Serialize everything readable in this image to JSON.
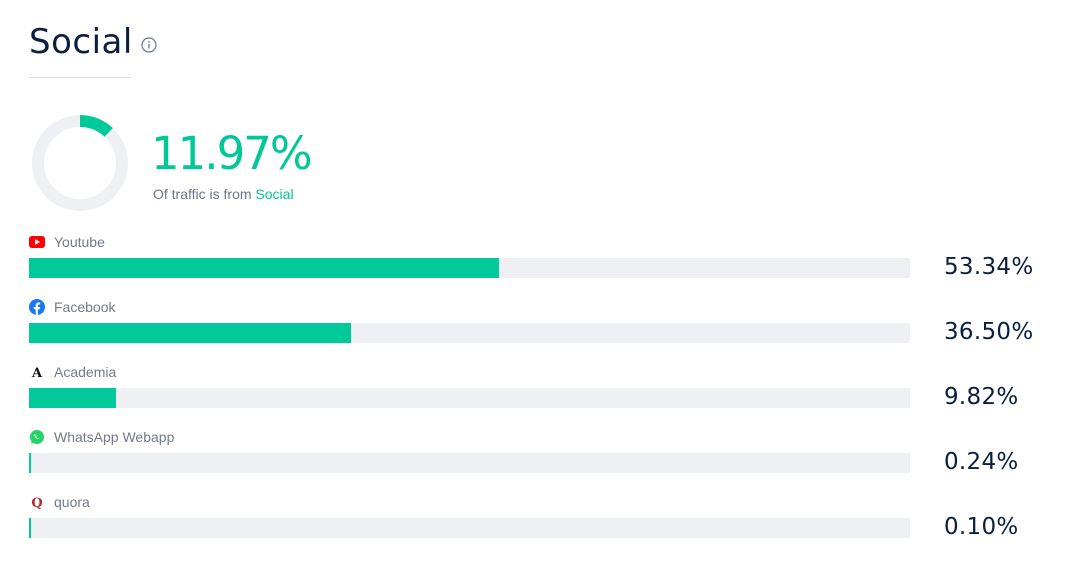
{
  "header": {
    "title": "Social",
    "info_icon": "info-icon"
  },
  "summary": {
    "percent_label": "11.97%",
    "percent_value": 11.97,
    "caption_prefix": "Of traffic is from",
    "caption_highlight": "Social"
  },
  "colors": {
    "accent": "#00c99a",
    "track": "#eff0f4",
    "title": "#0b1e3f"
  },
  "chart_data": {
    "type": "bar",
    "orientation": "horizontal",
    "categories": [
      "Youtube",
      "Facebook",
      "Academia",
      "WhatsApp Webapp",
      "quora"
    ],
    "values": [
      53.34,
      36.5,
      9.82,
      0.24,
      0.1
    ],
    "value_labels": [
      "53.34%",
      "36.50%",
      "9.82%",
      "0.24%",
      "0.10%"
    ],
    "icons": [
      "youtube-icon",
      "facebook-icon",
      "academia-icon",
      "whatsapp-icon",
      "quora-icon"
    ],
    "xlim": [
      0,
      100
    ]
  }
}
